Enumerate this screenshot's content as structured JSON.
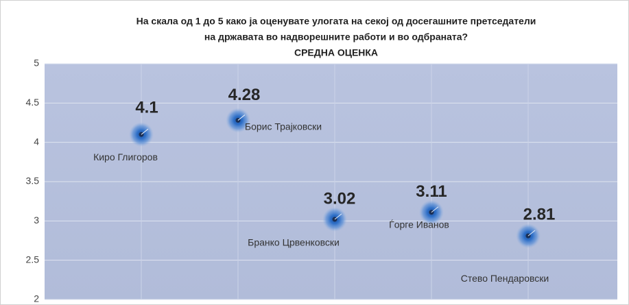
{
  "chart_data": {
    "type": "scatter",
    "title": [
      "На скала од 1 до 5 како ја оценувате  улогата на секој од досегашните претседатели",
      "на државата во надворешните работи и во одбраната?",
      "СРЕДНА ОЦЕНКА"
    ],
    "categories": [
      "Киро Глигоров",
      "Борис Трајковски",
      "Бранко Црвенковски",
      "Ѓорге Иванов",
      "Стево Пендаровски"
    ],
    "values": [
      4.1,
      4.28,
      3.02,
      3.11,
      2.81
    ],
    "color": "#2e6fc7",
    "ylim": [
      2,
      5
    ],
    "yticks": [
      2,
      2.5,
      3,
      3.5,
      4,
      4.5,
      5
    ],
    "grid": true
  }
}
